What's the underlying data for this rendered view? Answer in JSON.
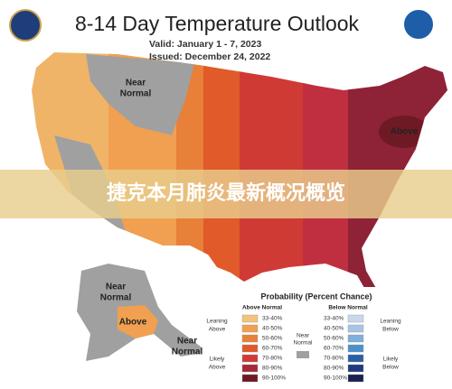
{
  "header": {
    "title": "8-14 Day Temperature Outlook",
    "valid": "Valid:  January 1 - 7, 2023",
    "issued": "Issued:  December 24, 2022"
  },
  "banner": {
    "text": "捷克本月肺炎最新概况概览"
  },
  "map_labels": [
    {
      "lines": [
        "Near",
        "Normal"
      ]
    },
    {
      "lines": [
        "Above"
      ]
    },
    {
      "lines": [
        "Near",
        "Normal"
      ]
    },
    {
      "lines": [
        "Above"
      ]
    },
    {
      "lines": [
        "Near",
        "Normal"
      ]
    }
  ],
  "legend": {
    "title": "Probability (Percent Chance)",
    "above_header": "Above Normal",
    "below_header": "Below Normal",
    "above": [
      {
        "label": "33-40%",
        "color": "#f5c27a"
      },
      {
        "label": "40-50%",
        "color": "#f0a050"
      },
      {
        "label": "50-60%",
        "color": "#e8803a"
      },
      {
        "label": "60-70%",
        "color": "#e05a2a"
      },
      {
        "label": "70-80%",
        "color": "#d03a35"
      },
      {
        "label": "80-90%",
        "color": "#a82838"
      },
      {
        "label": "90-100%",
        "color": "#6e1a24"
      }
    ],
    "below": [
      {
        "label": "33-40%",
        "color": "#c8d8ea"
      },
      {
        "label": "40-50%",
        "color": "#a8c4e4"
      },
      {
        "label": "50-60%",
        "color": "#80aede"
      },
      {
        "label": "60-70%",
        "color": "#4a90cc"
      },
      {
        "label": "70-80%",
        "color": "#2a5fa8"
      },
      {
        "label": "80-90%",
        "color": "#203a80"
      },
      {
        "label": "90-100%",
        "color": "#1a2050"
      }
    ],
    "near_normal": [
      "Near",
      "Normal"
    ],
    "leaning_above": [
      "Leaning",
      "Above"
    ],
    "likely_above": [
      "Likely",
      "Above"
    ],
    "leaning_below": [
      "Leaning",
      "Below"
    ],
    "likely_below": [
      "Likely",
      "Below"
    ]
  }
}
